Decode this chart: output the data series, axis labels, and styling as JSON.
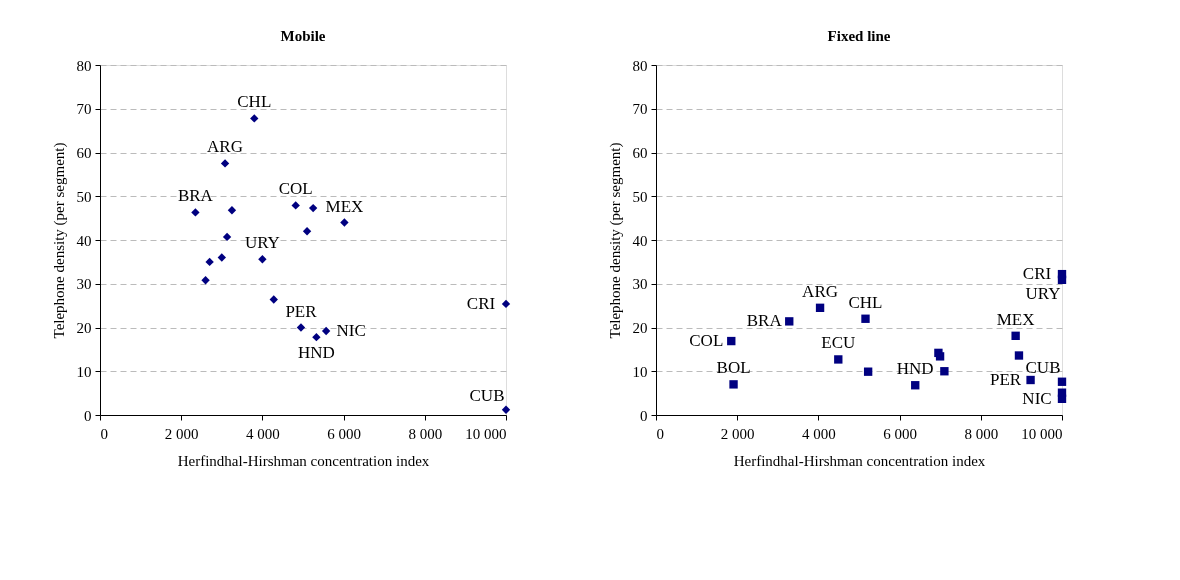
{
  "chart_data": [
    {
      "type": "scatter",
      "title": "Mobile",
      "xlabel": "Herfindhal-Hirshman concentration index",
      "ylabel": "Telephone density (per segment)",
      "xlim": [
        0,
        10000
      ],
      "ylim": [
        0,
        80
      ],
      "xticks": [
        0,
        {
          "value": 2000,
          "label": "2 000"
        },
        {
          "value": 4000,
          "label": "4 000"
        },
        {
          "value": 6000,
          "label": "6 000"
        },
        {
          "value": 8000,
          "label": "8 000"
        },
        {
          "value": 10000,
          "label": "10 000"
        }
      ],
      "yticks": [
        0,
        10,
        20,
        30,
        40,
        50,
        60,
        70,
        80
      ],
      "grid": "y",
      "marker": "diamond",
      "series": [
        {
          "color": "#000080",
          "x": [
            3800,
            3080,
            2350,
            3250,
            4820,
            5250,
            5100,
            6020,
            3130,
            4000,
            3000,
            2700,
            2600,
            4280,
            4950,
            5330,
            5570,
            10000,
            10000
          ],
          "values": [
            67.8,
            57.5,
            46.3,
            46.8,
            47.9,
            47.3,
            42.0,
            44.0,
            40.7,
            35.6,
            36.0,
            35.0,
            30.8,
            26.4,
            20.0,
            17.8,
            19.2,
            25.4,
            1.2
          ]
        }
      ],
      "annotations": [
        {
          "text": "CHL",
          "x": 3800,
          "y": 67.8
        },
        {
          "text": "ARG",
          "x": 3080,
          "y": 57.5
        },
        {
          "text": "COL",
          "x": 4820,
          "y": 47.9
        },
        {
          "text": "BRA",
          "x": 2350,
          "y": 46.3
        },
        {
          "text": "MEX",
          "x": 6020,
          "y": 44.0
        },
        {
          "text": "URY",
          "x": 4000,
          "y": 35.6
        },
        {
          "text": "CRI",
          "x": 10000,
          "y": 25.4
        },
        {
          "text": "PER",
          "x": 4950,
          "y": 20.0
        },
        {
          "text": "NIC",
          "x": 5570,
          "y": 19.2
        },
        {
          "text": "HND",
          "x": 5330,
          "y": 17.8
        },
        {
          "text": "CUB",
          "x": 10000,
          "y": 1.2
        }
      ]
    },
    {
      "type": "scatter",
      "title": "Fixed line",
      "xlabel": "Herfindhal-Hirshman concentration index",
      "ylabel": "Telephone density (per segment)",
      "xlim": [
        0,
        10000
      ],
      "ylim": [
        0,
        80
      ],
      "xticks": [
        0,
        {
          "value": 2000,
          "label": "2 000"
        },
        {
          "value": 4000,
          "label": "4 000"
        },
        {
          "value": 6000,
          "label": "6 000"
        },
        {
          "value": 8000,
          "label": "8 000"
        },
        {
          "value": 10000,
          "label": "10 000"
        }
      ],
      "yticks": [
        0,
        10,
        20,
        30,
        40,
        50,
        60,
        70,
        80
      ],
      "grid": "y",
      "marker": "square",
      "series": [
        {
          "color": "#000080",
          "x": [
            1854,
            1910,
            3282,
            4041,
            4490,
            5160,
            5225,
            6385,
            6956,
            6997,
            7103,
            8858,
            8940,
            9226,
            10000,
            10000,
            10000,
            10000,
            10000
          ],
          "values": [
            16.9,
            7.0,
            21.4,
            24.5,
            12.7,
            22.0,
            9.9,
            6.8,
            14.2,
            13.4,
            10.0,
            18.1,
            13.6,
            8.0,
            32.2,
            30.9,
            7.6,
            5.1,
            3.7
          ]
        }
      ],
      "annotations": [
        {
          "text": "CRI",
          "x": 10000,
          "y": 32.2
        },
        {
          "text": "URY",
          "x": 10000,
          "y": 30.9
        },
        {
          "text": "ARG",
          "x": 4041,
          "y": 24.5
        },
        {
          "text": "BRA",
          "x": 3282,
          "y": 21.4
        },
        {
          "text": "CHL",
          "x": 5160,
          "y": 22.0
        },
        {
          "text": "MEX",
          "x": 8858,
          "y": 18.1
        },
        {
          "text": "COL",
          "x": 1854,
          "y": 16.9
        },
        {
          "text": "ECU",
          "x": 4490,
          "y": 12.7
        },
        {
          "text": "CUB",
          "x": 10000,
          "y": 7.6
        },
        {
          "text": "BOL",
          "x": 1910,
          "y": 7.0
        },
        {
          "text": "PER",
          "x": 9226,
          "y": 8.0
        },
        {
          "text": "HND",
          "x": 6385,
          "y": 6.8
        },
        {
          "text": "NIC",
          "x": 10000,
          "y": 3.7
        }
      ]
    }
  ]
}
